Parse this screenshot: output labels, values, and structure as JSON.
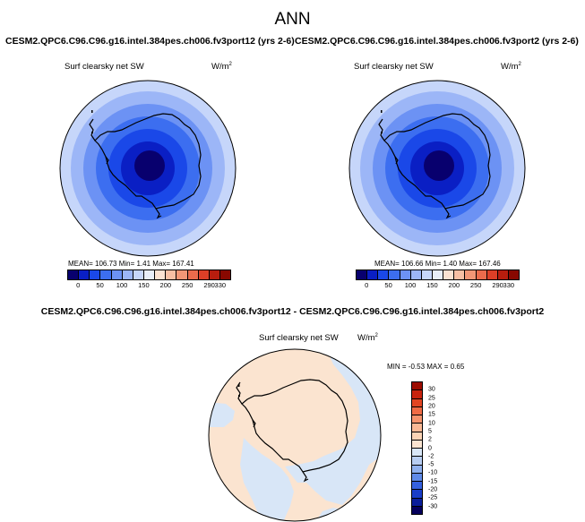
{
  "title": "ANN",
  "variable": "Surf clearsky net SW",
  "units": {
    "base": "W/m",
    "exp": "2"
  },
  "left_panel": {
    "case": "CESM2.QPC6.C96.C96.g16.intel.384pes.ch006.fv3port12 (yrs 2-6)",
    "stats": "MEAN= 106.73  Min=   1.41  Max= 167.41"
  },
  "right_panel": {
    "case": "CESM2.QPC6.C96.C96.g16.intel.384pes.ch006.fv3port2 (yrs 2-6)",
    "stats": "MEAN= 106.66  Min=   1.40  Max= 167.46"
  },
  "diff_panel": {
    "title": "CESM2.QPC6.C96.C96.g16.intel.384pes.ch006.fv3port12 - CESM2.QPC6.C96.C96.g16.intel.384pes.ch006.fv3port2",
    "stats": "MIN = -0.53 MAX =  0.65"
  },
  "colorbar_main": {
    "colors": [
      "#08006e",
      "#0a1fc4",
      "#1a48e8",
      "#3c6ef0",
      "#6c92f4",
      "#9cb6f7",
      "#c6d6fa",
      "#e8eef9",
      "#fbe2d2",
      "#f7bfa4",
      "#f29676",
      "#eb6b4c",
      "#dc3f27",
      "#b81d0e",
      "#880800"
    ],
    "ticks": [
      "0",
      "50",
      "100",
      "150",
      "200",
      "250",
      "290",
      "330"
    ]
  },
  "colorbar_diff": {
    "colors": [
      "#9c0c00",
      "#c8230e",
      "#e24522",
      "#ef6b45",
      "#f5936d",
      "#f9b895",
      "#fbd3b5",
      "#fbe4d0",
      "#d8e6f7",
      "#b7cdf2",
      "#8fb0ee",
      "#5f8ae8",
      "#3561df",
      "#1a3ec9",
      "#0b1e9a",
      "#06005c"
    ],
    "ticks": [
      "30",
      "25",
      "20",
      "15",
      "10",
      "5",
      "2",
      "0",
      "-2",
      "-5",
      "-10",
      "-15",
      "-20",
      "-25",
      "-30"
    ]
  },
  "field_colors": {
    "land_diff": "#fbe4d0",
    "ocean_diff": "#d8e6f7"
  }
}
